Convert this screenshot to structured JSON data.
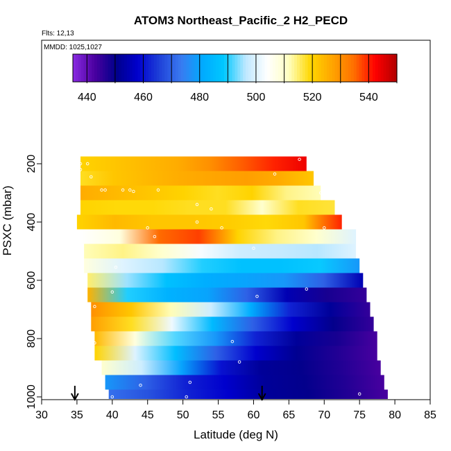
{
  "chart_data": {
    "type": "heatmap",
    "title": "ATOM3 Northeast_Pacific_2 H2_PECD",
    "annotations": [
      "Flts: 12,13",
      "MMDD: 1025,1027"
    ],
    "xlabel": "Latitude (deg N)",
    "ylabel": "PSXC (mbar)",
    "xlim": [
      30,
      85
    ],
    "ylim": [
      1000,
      100
    ],
    "x_ticks": [
      30,
      35,
      40,
      45,
      50,
      55,
      60,
      65,
      70,
      75,
      80,
      85
    ],
    "y_ticks": [
      200,
      400,
      600,
      800,
      1000
    ],
    "colorbar": {
      "range": [
        435,
        550
      ],
      "ticks": [
        440,
        460,
        480,
        500,
        520,
        540
      ],
      "placement": "top-inside",
      "colors": [
        "#8a2be2",
        "#4b00a0",
        "#00008b",
        "#0000cd",
        "#1e40d8",
        "#3a7af0",
        "#00aaff",
        "#00c8ff",
        "#bfe8ff",
        "#ffffff",
        "#ffffc0",
        "#ffd700",
        "#ffa500",
        "#ff7000",
        "#ff0000",
        "#b00000"
      ]
    },
    "rows": [
      {
        "p": 200,
        "lat_min": 35.5,
        "lat_max": 67.5,
        "v": [
          520,
          522,
          524,
          526,
          530,
          536,
          540,
          544
        ]
      },
      {
        "p": 250,
        "lat_min": 35.5,
        "lat_max": 68.5,
        "v": [
          518,
          522,
          524,
          526,
          527,
          528,
          526,
          522
        ]
      },
      {
        "p": 300,
        "lat_min": 35.5,
        "lat_max": 69.5,
        "v": [
          526,
          524,
          522,
          520,
          518,
          520,
          514,
          512
        ]
      },
      {
        "p": 350,
        "lat_min": 35.5,
        "lat_max": 71.5,
        "v": [
          520,
          519,
          519,
          518,
          518,
          510,
          518,
          517
        ]
      },
      {
        "p": 400,
        "lat_min": 35,
        "lat_max": 72.5,
        "v": [
          520,
          524,
          522,
          522,
          521,
          519,
          522,
          540
        ]
      },
      {
        "p": 450,
        "lat_min": 35.5,
        "lat_max": 74.5,
        "v": [
          504,
          508,
          535,
          538,
          520,
          514,
          510,
          500
        ]
      },
      {
        "p": 500,
        "lat_min": 36,
        "lat_max": 74.5,
        "v": [
          512,
          514,
          510,
          503,
          498,
          497,
          496,
          500
        ]
      },
      {
        "p": 550,
        "lat_min": 36,
        "lat_max": 75,
        "v": [
          508,
          500,
          496,
          490,
          487,
          487,
          489,
          478
        ]
      },
      {
        "p": 600,
        "lat_min": 36.5,
        "lat_max": 75.5,
        "v": [
          515,
          495,
          487,
          482,
          480,
          478,
          470,
          455
        ]
      },
      {
        "p": 650,
        "lat_min": 36.5,
        "lat_max": 76,
        "v": [
          525,
          490,
          483,
          480,
          470,
          455,
          448,
          445
        ]
      },
      {
        "p": 700,
        "lat_min": 37,
        "lat_max": 76.5,
        "v": [
          530,
          522,
          512,
          498,
          482,
          462,
          452,
          445
        ]
      },
      {
        "p": 750,
        "lat_min": 37,
        "lat_max": 77,
        "v": [
          528,
          518,
          502,
          485,
          470,
          458,
          450,
          445
        ]
      },
      {
        "p": 800,
        "lat_min": 37.5,
        "lat_max": 77.5,
        "v": [
          524,
          508,
          492,
          478,
          462,
          452,
          448,
          443
        ]
      },
      {
        "p": 850,
        "lat_min": 37.5,
        "lat_max": 77.5,
        "v": [
          520,
          500,
          486,
          470,
          458,
          451,
          447,
          443
        ]
      },
      {
        "p": 900,
        "lat_min": 38.5,
        "lat_max": 78,
        "v": [
          510,
          498,
          480,
          460,
          452,
          450,
          447,
          443
        ]
      },
      {
        "p": 950,
        "lat_min": 39,
        "lat_max": 78.5,
        "v": [
          478,
          470,
          462,
          458,
          452,
          450,
          447,
          443
        ]
      },
      {
        "p": 1000,
        "lat_min": 39.5,
        "lat_max": 79,
        "v": [
          472,
          468,
          462,
          458,
          452,
          450,
          447,
          443
        ]
      }
    ],
    "markers": [
      {
        "lat": 35.5,
        "p": 200
      },
      {
        "lat": 36.5,
        "p": 200
      },
      {
        "lat": 66.5,
        "p": 185
      },
      {
        "lat": 35.5,
        "p": 220
      },
      {
        "lat": 37,
        "p": 245
      },
      {
        "lat": 63,
        "p": 235
      },
      {
        "lat": 38.5,
        "p": 290
      },
      {
        "lat": 39,
        "p": 290
      },
      {
        "lat": 41.5,
        "p": 290
      },
      {
        "lat": 42.5,
        "p": 290
      },
      {
        "lat": 43,
        "p": 295
      },
      {
        "lat": 46.5,
        "p": 290
      },
      {
        "lat": 52,
        "p": 340
      },
      {
        "lat": 54,
        "p": 355
      },
      {
        "lat": 52,
        "p": 400
      },
      {
        "lat": 45,
        "p": 420
      },
      {
        "lat": 55.5,
        "p": 420
      },
      {
        "lat": 46,
        "p": 450
      },
      {
        "lat": 70,
        "p": 420
      },
      {
        "lat": 73.5,
        "p": 420
      },
      {
        "lat": 69.5,
        "p": 300
      },
      {
        "lat": 60,
        "p": 490
      },
      {
        "lat": 40.5,
        "p": 555
      },
      {
        "lat": 40,
        "p": 640
      },
      {
        "lat": 60.5,
        "p": 655
      },
      {
        "lat": 67.5,
        "p": 630
      },
      {
        "lat": 37.5,
        "p": 690
      },
      {
        "lat": 57,
        "p": 810
      },
      {
        "lat": 37.5,
        "p": 815
      },
      {
        "lat": 58,
        "p": 880
      },
      {
        "lat": 44,
        "p": 960
      },
      {
        "lat": 51,
        "p": 950
      },
      {
        "lat": 50.5,
        "p": 1000
      },
      {
        "lat": 40,
        "p": 1000
      },
      {
        "lat": 75,
        "p": 990
      }
    ],
    "flight_arrows": [
      34.7,
      61.2
    ]
  }
}
